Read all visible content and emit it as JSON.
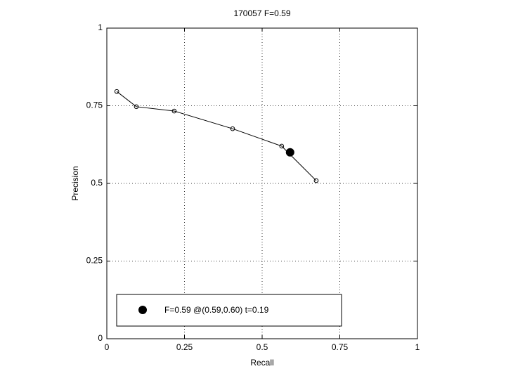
{
  "chart_data": {
    "type": "line",
    "title": "170057 F=0.59",
    "xlabel": "Recall",
    "ylabel": "Precision",
    "xlim": [
      0,
      1
    ],
    "ylim": [
      0,
      1
    ],
    "xticks": [
      0,
      0.25,
      0.5,
      0.75,
      1
    ],
    "yticks": [
      0,
      0.25,
      0.5,
      0.75,
      1
    ],
    "grid": true,
    "series": [
      {
        "color": "#000000",
        "marker": "small",
        "x": [
          0.032,
          0.095,
          0.217,
          0.405,
          0.563,
          0.674
        ],
        "values": [
          0.796,
          0.747,
          0.733,
          0.676,
          0.62,
          0.509
        ]
      },
      {
        "name": "F=0.59 @(0.59,0.60) t=0.19",
        "color": "#000000",
        "marker": "big",
        "x": [
          0.59
        ],
        "values": [
          0.6
        ]
      }
    ]
  }
}
